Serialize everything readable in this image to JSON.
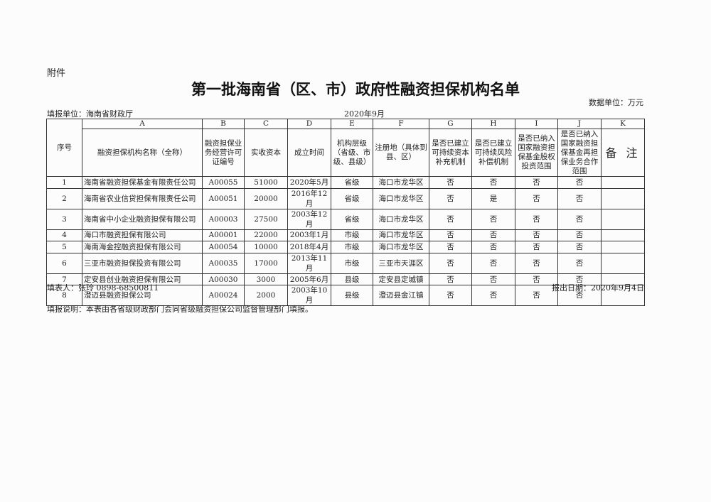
{
  "attachment_label": "附件",
  "title": "第一批海南省（区、市）政府性融资担保机构名单",
  "unit": "数据单位：万元",
  "filler_unit": "填报单位：海南省财政厅",
  "period": "2020年9月",
  "table": {
    "letters": [
      "A",
      "B",
      "C",
      "D",
      "E",
      "F",
      "G",
      "H",
      "I",
      "J",
      "K"
    ],
    "index_header": "序号",
    "headers": [
      "融资担保机构名称（全称）",
      "融资担保业务经营许可证编号",
      "实收资本",
      "成立时间",
      "机构层级（省级、市级、县级）",
      "注册地（具体到县、区）",
      "是否已建立可持续资本补充机制",
      "是否已建立可持续风险补偿机制",
      "是否已纳入国家融资担保基金股权投资范围",
      "是否已纳入国家融资担保基金再担保业务合作范围",
      "备 注"
    ],
    "rows": [
      [
        "1",
        "海南省融资担保基金有限责任公司",
        "A00055",
        "51000",
        "2020年5月",
        "省级",
        "海口市龙华区",
        "否",
        "否",
        "否",
        "否",
        ""
      ],
      [
        "2",
        "海南省农业信贷担保有限责任公司",
        "A00051",
        "20000",
        "2016年12月",
        "省级",
        "海口市龙华区",
        "否",
        "是",
        "否",
        "否",
        ""
      ],
      [
        "3",
        "海南省中小企业融资担保有限公司",
        "A00003",
        "27500",
        "2003年12月",
        "省级",
        "海口市龙华区",
        "否",
        "否",
        "否",
        "否",
        ""
      ],
      [
        "4",
        "海口市融资担保有限公司",
        "A00001",
        "22000",
        "2003年1月",
        "市级",
        "海口市龙华区",
        "否",
        "否",
        "否",
        "否",
        ""
      ],
      [
        "5",
        "海南海金控融资担保有限公司",
        "A00054",
        "10000",
        "2018年4月",
        "市级",
        "海口市龙华区",
        "否",
        "否",
        "否",
        "否",
        ""
      ],
      [
        "6",
        "三亚市融资担保投资有限公司",
        "A00035",
        "17000",
        "2013年11月",
        "市级",
        "三亚市天涯区",
        "否",
        "否",
        "否",
        "否",
        ""
      ],
      [
        "7",
        "定安县创业融资担保有限公司",
        "A00030",
        "3000",
        "2005年6月",
        "县级",
        "定安县定城镇",
        "否",
        "否",
        "否",
        "否",
        ""
      ],
      [
        "8",
        "澄迈县融资担保公司",
        "A00024",
        "2000",
        "2003年10月",
        "县级",
        "澄迈县金江镇",
        "否",
        "否",
        "否",
        "否",
        ""
      ]
    ]
  },
  "footer": {
    "preparer": "填表人：张玲   0898-68500811",
    "report_date": "报出日期：2020年9月4日",
    "note": "填报说明：本表由各省级财政部门会同省级融资担保公司监督管理部门填报。"
  }
}
